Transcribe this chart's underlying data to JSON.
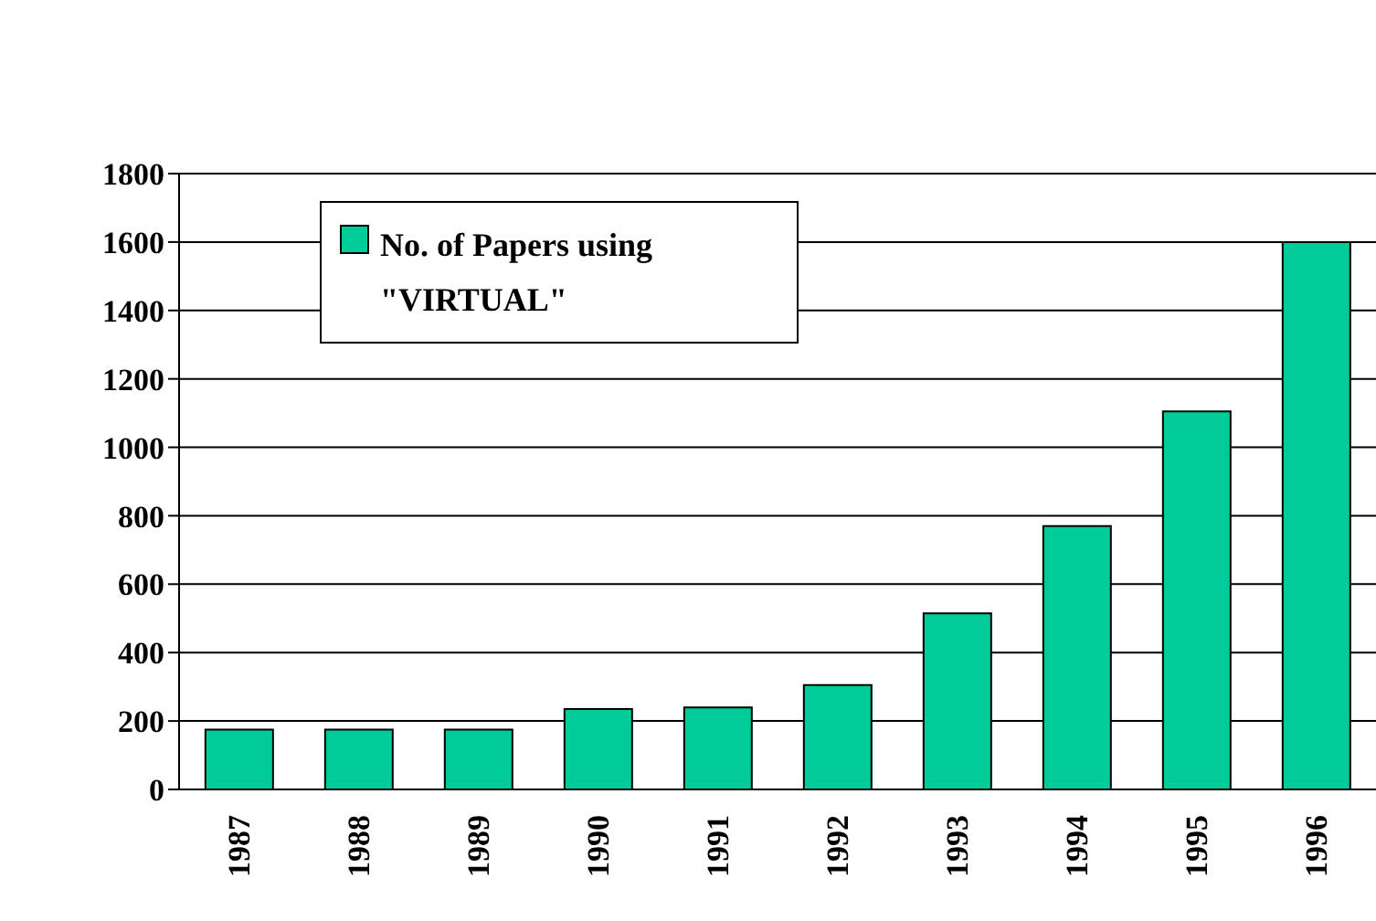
{
  "chart_data": {
    "type": "bar",
    "categories": [
      "1987",
      "1988",
      "1989",
      "1990",
      "1991",
      "1992",
      "1993",
      "1994",
      "1995",
      "1996"
    ],
    "series": [
      {
        "name": "No. of Papers using \"VIRTUAL\"",
        "color": "#00cc99",
        "values": [
          175,
          175,
          175,
          235,
          240,
          305,
          515,
          770,
          1105,
          1600
        ]
      }
    ],
    "ylim": [
      0,
      1800
    ],
    "yticks": [
      0,
      200,
      400,
      600,
      800,
      1000,
      1200,
      1400,
      1600,
      1800
    ],
    "grid": "y",
    "legend": "top left"
  }
}
